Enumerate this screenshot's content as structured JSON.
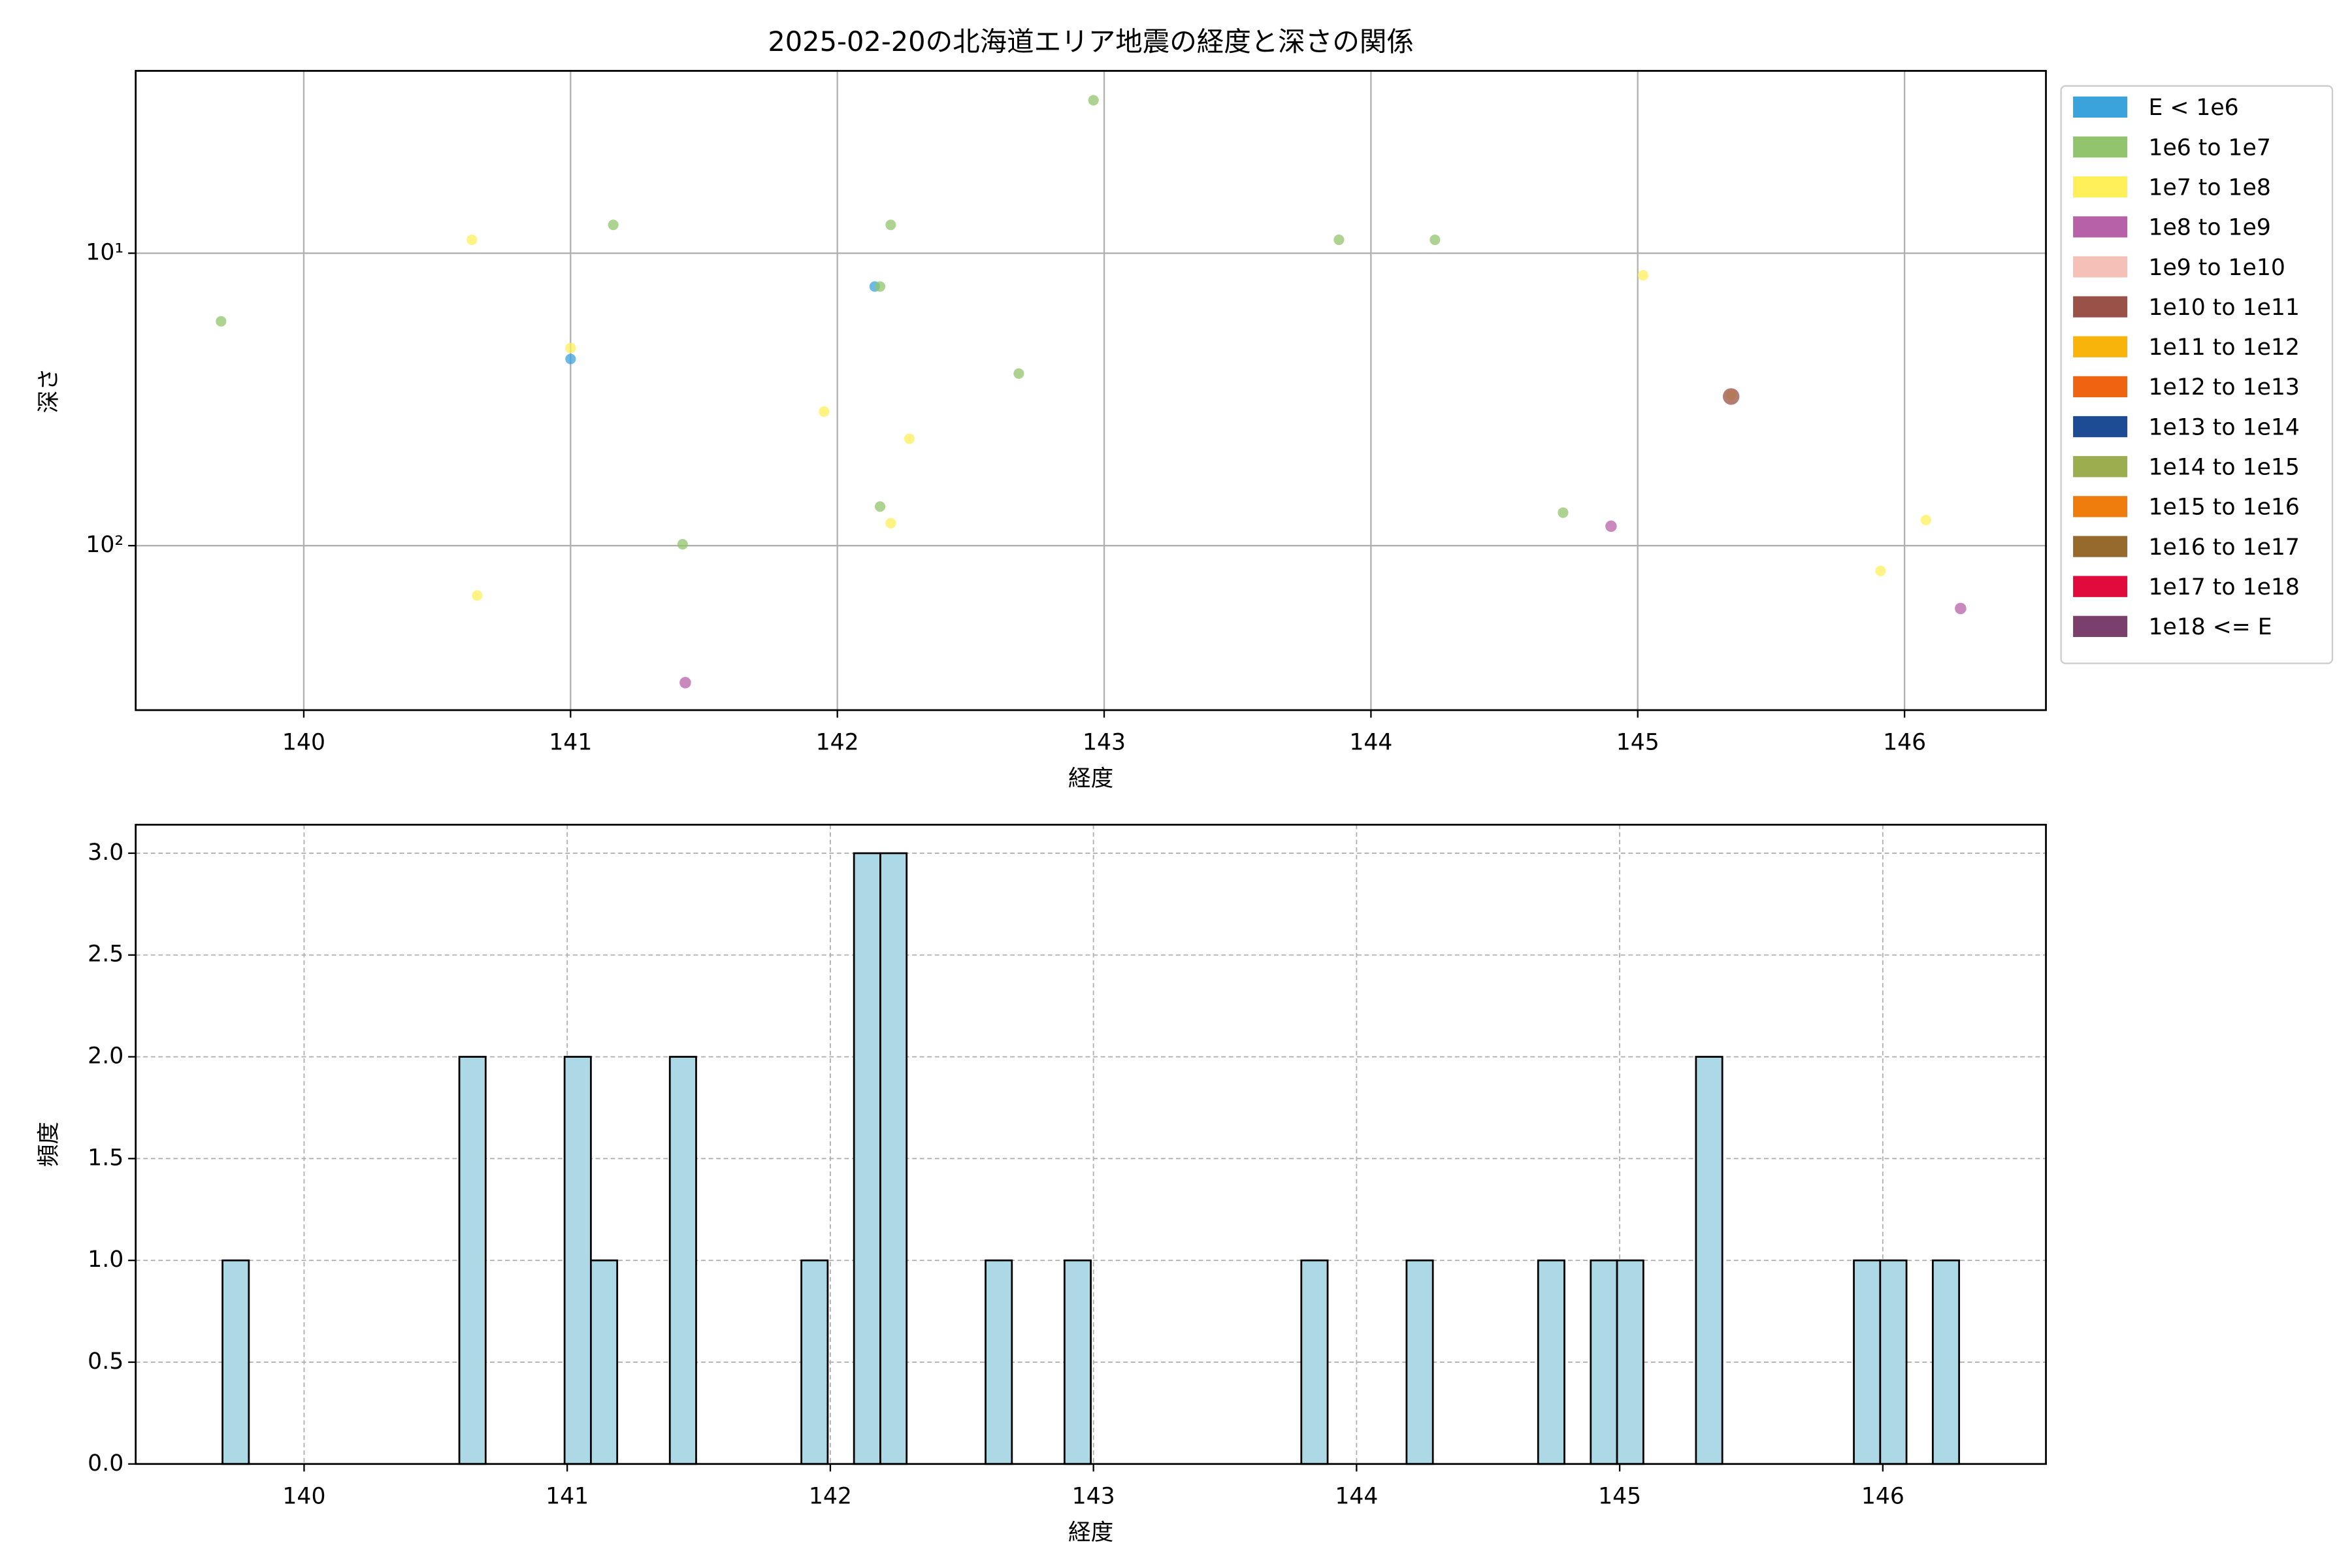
{
  "chart_data": [
    {
      "type": "scatter",
      "title": "2025-02-20の北海道エリア地震の経度と深さの関係",
      "x_label": "経度",
      "y_label": "深さ",
      "xlim": [
        139.37,
        146.53
      ],
      "xticks": [
        140,
        141,
        142,
        143,
        144,
        145,
        146
      ],
      "yscale": "log",
      "ylim": [
        365,
        2.38
      ],
      "yticks": [
        {
          "value": 10,
          "label": "10¹"
        },
        {
          "value": 100,
          "label": "10²"
        }
      ],
      "grid": true,
      "legend": "outside right",
      "series": [
        {
          "name": "E < 1e6",
          "color": "#3ba3dc",
          "marker_size": 3.5,
          "x": [
            141.0,
            142.14
          ],
          "values": [
            23.0,
            13.0
          ]
        },
        {
          "name": "1e6 to 1e7",
          "color": "#91c46c",
          "marker_size": 3.5,
          "x": [
            139.69,
            141.16,
            141.42,
            142.16,
            142.16,
            142.2,
            142.68,
            142.96,
            143.88,
            144.24,
            144.72
          ],
          "values": [
            17.1,
            8.0,
            98.9,
            13.0,
            73.5,
            8.0,
            25.8,
            3.0,
            9.0,
            9.0,
            77.1
          ]
        },
        {
          "name": "1e7 to 1e8",
          "color": "#fff05a",
          "marker_size": 3.5,
          "x": [
            140.63,
            140.65,
            141.0,
            141.95,
            142.2,
            142.27,
            145.02,
            145.35,
            145.91,
            146.08
          ],
          "values": [
            9.0,
            148,
            21.1,
            34.8,
            83.8,
            43.1,
            11.9,
            30.5,
            122,
            81.7
          ]
        },
        {
          "name": "1e8 to 1e9",
          "color": "#b762a8",
          "marker_size": 3.8,
          "x": [
            141.43,
            144.9,
            146.21
          ],
          "values": [
            294,
            85.8,
            164
          ]
        },
        {
          "name": "1e9 to 1e10",
          "color": "#f5c0b8",
          "marker_size": 4,
          "x": [],
          "values": []
        },
        {
          "name": "1e10 to 1e11",
          "color": "#9a5148",
          "marker_size": 5.5,
          "x": [
            145.35
          ],
          "values": [
            30.9
          ]
        },
        {
          "name": "1e11 to 1e12",
          "color": "#f8b40a",
          "marker_size": 4,
          "x": [],
          "values": []
        },
        {
          "name": "1e12 to 1e13",
          "color": "#ee6410",
          "marker_size": 4,
          "x": [],
          "values": []
        },
        {
          "name": "1e13 to 1e14",
          "color": "#1e4c94",
          "marker_size": 4,
          "x": [],
          "values": []
        },
        {
          "name": "1e14 to 1e15",
          "color": "#9cad50",
          "marker_size": 4,
          "x": [],
          "values": []
        },
        {
          "name": "1e15 to 1e16",
          "color": "#ef7d0d",
          "marker_size": 4,
          "x": [],
          "values": []
        },
        {
          "name": "1e16 to 1e17",
          "color": "#956a2c",
          "marker_size": 4,
          "x": [],
          "values": []
        },
        {
          "name": "1e17 to 1e18",
          "color": "#e00a3c",
          "marker_size": 4,
          "x": [],
          "values": []
        },
        {
          "name": "1e18 <= E",
          "color": "#7b3f6e",
          "marker_size": 4,
          "x": [],
          "values": []
        }
      ]
    },
    {
      "type": "histogram",
      "x_label": "経度",
      "y_label": "頻度",
      "xlim": [
        139.36,
        146.62
      ],
      "xticks": [
        140,
        141,
        142,
        143,
        144,
        145,
        146
      ],
      "ylim": [
        0,
        3.14
      ],
      "yticks": [
        {
          "value": 0,
          "label": "0.0"
        },
        {
          "value": 0.5,
          "label": "0.5"
        },
        {
          "value": 1,
          "label": "1.0"
        },
        {
          "value": 1.5,
          "label": "1.5"
        },
        {
          "value": 2,
          "label": "2.0"
        },
        {
          "value": 2.5,
          "label": "2.5"
        },
        {
          "value": 3,
          "label": "3.0"
        }
      ],
      "grid": "dashed",
      "color": "#add8e6",
      "edge_color": "#000000",
      "bins": [
        139.69,
        139.79,
        139.89,
        139.99,
        140.09,
        140.19,
        140.29,
        140.39,
        140.49,
        140.59,
        140.69,
        140.79,
        140.89,
        140.99,
        141.09,
        141.19,
        141.29,
        141.39,
        141.49,
        141.59,
        141.69,
        141.79,
        141.89,
        141.99,
        142.09,
        142.19,
        142.29,
        142.39,
        142.49,
        142.59,
        142.69,
        142.79,
        142.89,
        142.99,
        143.09,
        143.19,
        143.29,
        143.39,
        143.49,
        143.59,
        143.69,
        143.79,
        143.89,
        143.99,
        144.09,
        144.19,
        144.29,
        144.39,
        144.49,
        144.59,
        144.69,
        144.79,
        144.89,
        144.99,
        145.09,
        145.19,
        145.29,
        145.39,
        145.49,
        145.59,
        145.69,
        145.79,
        145.89,
        145.99,
        146.09,
        146.19,
        146.29
      ],
      "counts": [
        1,
        0,
        0,
        0,
        0,
        0,
        0,
        0,
        0,
        2,
        0,
        0,
        0,
        2,
        1,
        0,
        0,
        2,
        0,
        0,
        0,
        0,
        1,
        0,
        3,
        3,
        0,
        0,
        0,
        1,
        0,
        0,
        1,
        0,
        0,
        0,
        0,
        0,
        0,
        0,
        0,
        1,
        0,
        0,
        0,
        1,
        0,
        0,
        0,
        0,
        1,
        0,
        1,
        1,
        0,
        0,
        2,
        0,
        0,
        0,
        0,
        0,
        1,
        1,
        0,
        1
      ]
    }
  ]
}
